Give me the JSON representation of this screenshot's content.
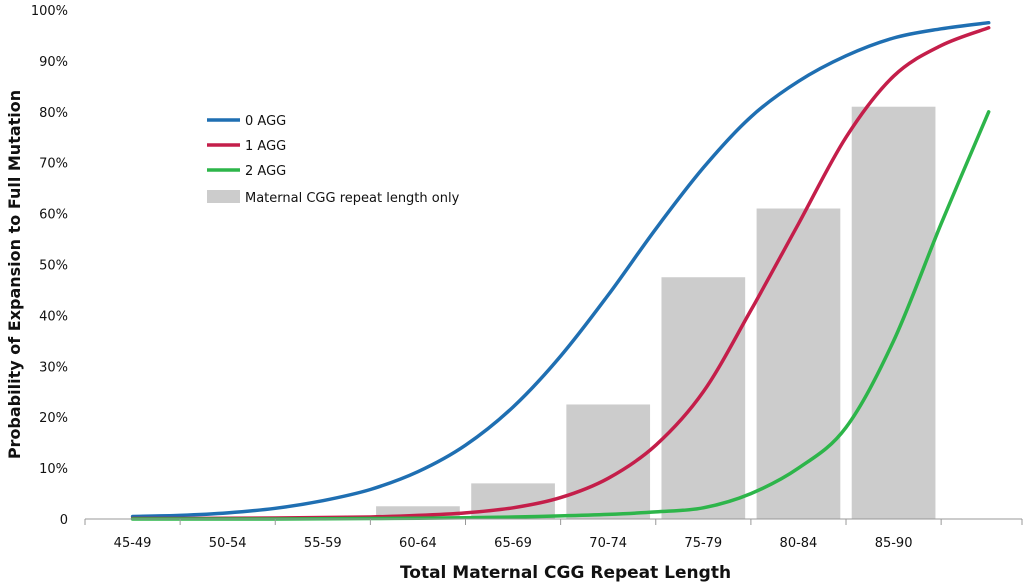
{
  "chart_data": {
    "type": "bar",
    "categories": [
      "45-49",
      "50-54",
      "55-59",
      "60-64",
      "65-69",
      "70-74",
      "75-79",
      "80-84",
      "85-90"
    ],
    "xlabel": "Total Maternal CGG Repeat Length",
    "ylabel": "Probability of Expansion to Full Mutation",
    "ylim": [
      0,
      100
    ],
    "yticks": [
      "0",
      "10%",
      "20%",
      "30%",
      "40%",
      "50%",
      "60%",
      "70%",
      "80%",
      "90%",
      "100%"
    ],
    "legend_position": "upper-left",
    "grid": false,
    "bar_series": {
      "name": "Maternal CGG repeat length only",
      "color": "#cccccc",
      "values": [
        0,
        0,
        0,
        2.5,
        7,
        22.5,
        47.5,
        61,
        81
      ]
    },
    "series": [
      {
        "name": "0 AGG",
        "color": "#1f6fb2",
        "type": "line",
        "x": [
          0,
          0.5,
          1,
          1.5,
          2,
          2.5,
          3,
          3.5,
          4,
          4.5,
          5,
          5.5,
          6,
          6.5,
          7,
          7.5,
          8,
          8.5,
          9
        ],
        "values": [
          0.5,
          0.7,
          1.2,
          2.1,
          3.6,
          5.8,
          9.3,
          14.5,
          22,
          32,
          44,
          57,
          69,
          79,
          86,
          91,
          94.5,
          96.3,
          97.5
        ]
      },
      {
        "name": "1 AGG",
        "color": "#c41e4a",
        "type": "line",
        "x": [
          0,
          0.5,
          1,
          1.5,
          2,
          2.5,
          3,
          3.5,
          4,
          4.5,
          5,
          5.5,
          6,
          6.5,
          7,
          7.5,
          8,
          8.5,
          9
        ],
        "values": [
          0.1,
          0.1,
          0.15,
          0.2,
          0.3,
          0.4,
          0.7,
          1.2,
          2.2,
          4.2,
          8,
          14.5,
          25,
          41,
          58,
          75,
          87,
          93,
          96.5
        ]
      },
      {
        "name": "2 AGG",
        "color": "#2db54a",
        "type": "line",
        "x": [
          0,
          0.5,
          1,
          1.5,
          2,
          2.5,
          3,
          3.5,
          4,
          4.5,
          5,
          5.5,
          6,
          6.5,
          7,
          7.5,
          8,
          8.5,
          9
        ],
        "values": [
          0,
          0,
          0,
          0,
          0.05,
          0.1,
          0.15,
          0.25,
          0.4,
          0.6,
          0.9,
          1.4,
          2.2,
          5,
          10,
          18,
          35,
          58,
          80
        ]
      }
    ]
  }
}
